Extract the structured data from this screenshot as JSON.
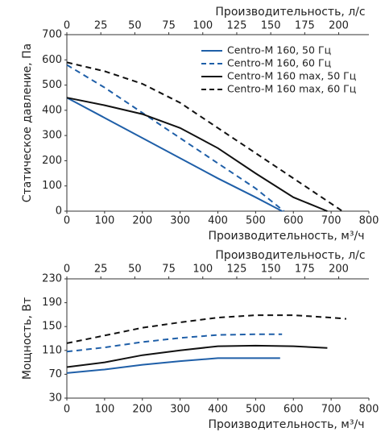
{
  "chart_data": [
    {
      "type": "line",
      "x2_label": "Производительность, л/с",
      "x_label": "Производительность, м³/ч",
      "y_label": "Статическое давление, Па",
      "xlim": [
        0,
        800
      ],
      "xticks": [
        0,
        100,
        200,
        300,
        400,
        500,
        600,
        700,
        800
      ],
      "x2lim": [
        0,
        222.2
      ],
      "x2ticks": [
        0,
        25,
        50,
        75,
        100,
        125,
        150,
        175,
        200
      ],
      "ylim": [
        0,
        700
      ],
      "yticks": [
        0,
        100,
        200,
        300,
        400,
        500,
        600,
        700
      ],
      "legend": "top-right",
      "series": [
        {
          "name": "Centro-M 160, 50 Гц",
          "color": "#1f5fa8",
          "dash": false,
          "x": [
            0,
            100,
            200,
            300,
            400,
            500,
            570
          ],
          "values": [
            450,
            370,
            290,
            210,
            130,
            55,
            0
          ]
        },
        {
          "name": "Centro-M 160, 60 Гц",
          "color": "#1f5fa8",
          "dash": true,
          "x": [
            0,
            100,
            200,
            300,
            400,
            500,
            575
          ],
          "values": [
            580,
            490,
            390,
            290,
            190,
            90,
            0
          ]
        },
        {
          "name": "Centro-M 160 max, 50 Гц",
          "color": "#111111",
          "dash": false,
          "x": [
            0,
            100,
            200,
            300,
            400,
            500,
            600,
            690
          ],
          "values": [
            450,
            420,
            385,
            330,
            250,
            150,
            55,
            0
          ]
        },
        {
          "name": "Centro-M 160 max, 60 Гц",
          "color": "#111111",
          "dash": true,
          "x": [
            0,
            100,
            200,
            300,
            400,
            500,
            600,
            700,
            730
          ],
          "values": [
            590,
            555,
            505,
            430,
            330,
            230,
            130,
            30,
            0
          ]
        }
      ]
    },
    {
      "type": "line",
      "x2_label": "Производительность, л/с",
      "x_label": "Производительность, м³/ч",
      "y_label": "Мощность, Вт",
      "xlim": [
        0,
        800
      ],
      "xticks": [
        0,
        100,
        200,
        300,
        400,
        500,
        600,
        700,
        800
      ],
      "x2lim": [
        0,
        222.2
      ],
      "x2ticks": [
        0,
        25,
        50,
        75,
        100,
        125,
        150,
        175,
        200
      ],
      "ylim": [
        30,
        230
      ],
      "yticks": [
        30,
        70,
        110,
        150,
        190,
        230
      ],
      "series": [
        {
          "color": "#1f5fa8",
          "dash": false,
          "x": [
            0,
            100,
            200,
            300,
            400,
            500,
            565
          ],
          "values": [
            72,
            78,
            86,
            92,
            97,
            97,
            97
          ]
        },
        {
          "color": "#1f5fa8",
          "dash": true,
          "x": [
            0,
            100,
            200,
            300,
            400,
            500,
            570
          ],
          "values": [
            108,
            115,
            124,
            131,
            136,
            137,
            137
          ]
        },
        {
          "color": "#111111",
          "dash": false,
          "x": [
            0,
            100,
            200,
            300,
            400,
            500,
            600,
            690
          ],
          "values": [
            82,
            90,
            102,
            110,
            117,
            118,
            117,
            114
          ]
        },
        {
          "color": "#111111",
          "dash": true,
          "x": [
            0,
            100,
            200,
            300,
            400,
            500,
            600,
            700,
            740
          ],
          "values": [
            122,
            135,
            148,
            157,
            165,
            169,
            169,
            165,
            163
          ]
        }
      ]
    }
  ]
}
